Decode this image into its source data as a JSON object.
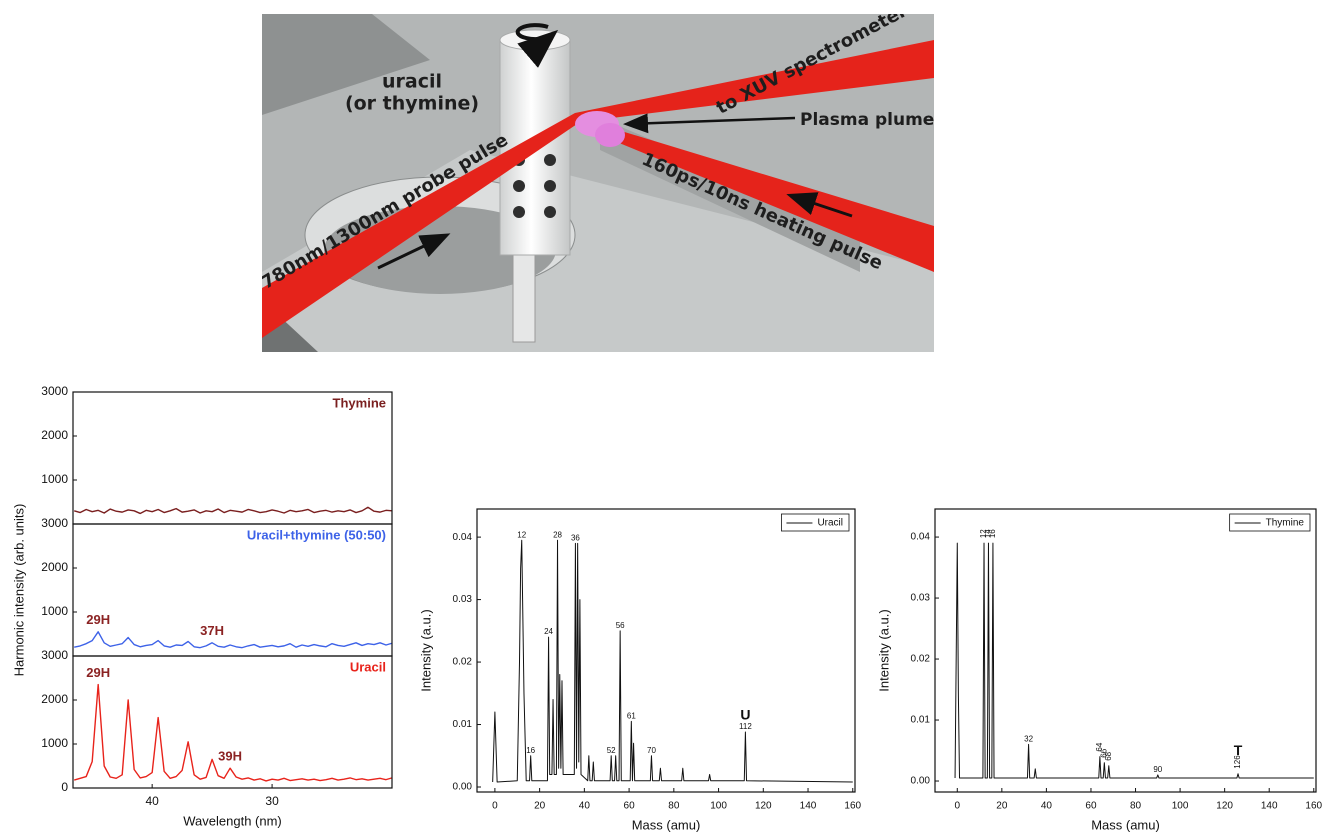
{
  "diagram": {
    "labels": [
      "uracil",
      "(or thymine)",
      "to XUV spectrometer",
      "Plasma plume",
      "780nm/1300nm probe pulse",
      "160ps/10ns heating pulse"
    ]
  },
  "chart_data": [
    {
      "type": "line",
      "x": [
        46.5,
        46,
        45.5,
        45,
        44.5,
        44,
        43.5,
        43,
        42.5,
        42,
        41.5,
        41,
        40.5,
        40,
        39.5,
        39,
        38.5,
        38,
        37.5,
        37,
        36.5,
        36,
        35.5,
        35,
        34.5,
        34,
        33.5,
        33,
        32.5,
        32,
        31.5,
        31,
        30.5,
        30,
        29.5,
        29,
        28.5,
        28,
        27.5,
        27,
        26.5,
        26,
        25.5,
        25,
        24.5,
        24,
        23.5,
        23,
        22.5,
        22,
        21.5,
        21,
        20.5,
        20
      ],
      "series": [
        {
          "name": "Thymine",
          "color": "#7a1f1f",
          "values": [
            300,
            260,
            330,
            280,
            310,
            250,
            340,
            290,
            270,
            320,
            300,
            240,
            310,
            280,
            330,
            260,
            300,
            350,
            270,
            290,
            320,
            250,
            300,
            280,
            340,
            260,
            310,
            290,
            270,
            330,
            300,
            260,
            280,
            320,
            290,
            250,
            310,
            280,
            300,
            330,
            260,
            290,
            310,
            270,
            300,
            280,
            320,
            260,
            300,
            380,
            290,
            270,
            310,
            300
          ]
        }
      ],
      "xlim": [
        46.6,
        20
      ],
      "ylim": [
        0,
        3000
      ],
      "yticks": [
        1000,
        2000,
        3000
      ]
    },
    {
      "type": "line",
      "x": [
        46.5,
        46,
        45.5,
        45,
        44.5,
        44,
        43.5,
        43,
        42.5,
        42,
        41.5,
        41,
        40.5,
        40,
        39.5,
        39,
        38.5,
        38,
        37.5,
        37,
        36.5,
        36,
        35.5,
        35,
        34.5,
        34,
        33.5,
        33,
        32.5,
        32,
        31.5,
        31,
        30.5,
        30,
        29.5,
        29,
        28.5,
        28,
        27.5,
        27,
        26.5,
        26,
        25.5,
        25,
        24.5,
        24,
        23.5,
        23,
        22.5,
        22,
        21.5,
        21,
        20.5,
        20
      ],
      "series": [
        {
          "name": "Uracil+thymine (50:50)",
          "color": "#3d62e8",
          "values": [
            200,
            230,
            280,
            350,
            550,
            300,
            220,
            250,
            280,
            420,
            260,
            210,
            240,
            260,
            350,
            230,
            200,
            250,
            240,
            330,
            210,
            190,
            230,
            300,
            220,
            200,
            250,
            210,
            190,
            230,
            260,
            200,
            220,
            240,
            210,
            230,
            280,
            200,
            250,
            220,
            260,
            230,
            210,
            280,
            240,
            220,
            260,
            300,
            240,
            280,
            260,
            300,
            250,
            290
          ]
        }
      ],
      "annotations": [
        {
          "x": 44.5,
          "text": "29H"
        },
        {
          "x": 35,
          "text": "37H"
        }
      ],
      "xlim": [
        46.6,
        20
      ],
      "ylim": [
        0,
        3000
      ],
      "yticks": [
        1000,
        2000,
        3000
      ],
      "ylabel": "Harmonic intensity (arb. units)"
    },
    {
      "type": "line",
      "x": [
        46.5,
        46,
        45.5,
        45,
        44.5,
        44,
        43.5,
        43,
        42.5,
        42,
        41.5,
        41,
        40.5,
        40,
        39.5,
        39,
        38.5,
        38,
        37.5,
        37,
        36.5,
        36,
        35.5,
        35,
        34.5,
        34,
        33.5,
        33,
        32.5,
        32,
        31.5,
        31,
        30.5,
        30,
        29.5,
        29,
        28.5,
        28,
        27.5,
        27,
        26.5,
        26,
        25.5,
        25,
        24.5,
        24,
        23.5,
        23,
        22.5,
        22,
        21.5,
        21,
        20.5,
        20
      ],
      "series": [
        {
          "name": "Uracil",
          "color": "#e8231b",
          "values": [
            180,
            220,
            260,
            600,
            2350,
            500,
            250,
            220,
            300,
            2000,
            420,
            230,
            260,
            350,
            1600,
            380,
            220,
            260,
            400,
            1050,
            300,
            200,
            240,
            650,
            280,
            220,
            450,
            250,
            200,
            230,
            180,
            210,
            160,
            200,
            180,
            220,
            170,
            190,
            210,
            180,
            200,
            170,
            190,
            220,
            180,
            200,
            230,
            190,
            210,
            180,
            200,
            220,
            190,
            230
          ]
        }
      ],
      "annotations": [
        {
          "x": 44.5,
          "text": "29H"
        },
        {
          "x": 33.5,
          "text": "39H"
        }
      ],
      "xlim": [
        46.6,
        20
      ],
      "xticks": [
        40,
        30
      ],
      "ylim": [
        0,
        3000
      ],
      "yticks": [
        0,
        1000,
        2000,
        3000
      ],
      "xlabel": "Wavelength (nm)"
    },
    {
      "type": "line",
      "x": [
        -1,
        0,
        1,
        10,
        11,
        11.5,
        12,
        13,
        14,
        15.5,
        16,
        16.5,
        23.5,
        24,
        24.5,
        25.5,
        26,
        26.5,
        27.5,
        28,
        28.5,
        29,
        29.5,
        30,
        30.5,
        35.5,
        36,
        36.5,
        37,
        37.5,
        38,
        38.5,
        41.5,
        42,
        42.5,
        43.5,
        44,
        44.5,
        51.5,
        52,
        52.5,
        53.5,
        54,
        54.5,
        55.5,
        56,
        56.5,
        60.5,
        61,
        61.5,
        62,
        62.5,
        69.5,
        70,
        70.5,
        73.5,
        74,
        74.5,
        83.5,
        84,
        84.5,
        95.5,
        96,
        96.5,
        111.5,
        112,
        112.5,
        160
      ],
      "series": [
        {
          "name": "Uracil",
          "color": "#111111",
          "values": [
            0.0008,
            0.012,
            0.0008,
            0.001,
            0.02,
            0.035,
            0.0395,
            0.015,
            0.001,
            0.001,
            0.005,
            0.001,
            0.001,
            0.024,
            0.002,
            0.002,
            0.014,
            0.002,
            0.002,
            0.0395,
            0.003,
            0.018,
            0.003,
            0.017,
            0.002,
            0.002,
            0.039,
            0.003,
            0.039,
            0.004,
            0.03,
            0.002,
            0.001,
            0.005,
            0.001,
            0.001,
            0.004,
            0.001,
            0.001,
            0.005,
            0.001,
            0.001,
            0.005,
            0.001,
            0.001,
            0.025,
            0.001,
            0.001,
            0.0105,
            0.001,
            0.007,
            0.001,
            0.001,
            0.005,
            0.001,
            0.001,
            0.003,
            0.001,
            0.001,
            0.003,
            0.001,
            0.001,
            0.002,
            0.001,
            0.001,
            0.0088,
            0.001,
            0.0008
          ]
        }
      ],
      "annotations": [
        {
          "x": 12,
          "text": "12"
        },
        {
          "x": 28,
          "text": "28"
        },
        {
          "x": 36,
          "text": "36"
        },
        {
          "x": 24,
          "text": "24"
        },
        {
          "x": 56,
          "text": "56"
        },
        {
          "x": 61,
          "text": "61"
        },
        {
          "x": 16,
          "text": "16"
        },
        {
          "x": 52,
          "text": "52"
        },
        {
          "x": 70,
          "text": "70"
        },
        {
          "x": 112,
          "text": "112"
        },
        {
          "x": 112,
          "text": "U"
        }
      ],
      "xlim": [
        -8,
        161
      ],
      "xticks": [
        0,
        20,
        40,
        60,
        80,
        100,
        120,
        140,
        160
      ],
      "ylim": [
        -0.0008,
        0.0445
      ],
      "yticks": [
        {
          "value": 0,
          "label": "0.00"
        },
        0.01,
        0.02,
        0.03,
        0.04
      ],
      "xlabel": "Mass (amu)",
      "ylabel": "Intensity (a.u.)",
      "legend": "upper right",
      "legend_frame": true
    },
    {
      "type": "line",
      "x": [
        -1,
        0,
        0.5,
        1,
        11.5,
        12,
        12.5,
        13.5,
        14,
        14.5,
        15.5,
        16,
        16.5,
        31.5,
        32,
        32.5,
        34.5,
        35,
        35.5,
        63.5,
        64,
        64.5,
        65.5,
        66,
        66.5,
        67.5,
        68,
        68.5,
        89.5,
        90,
        90.5,
        125.5,
        126,
        126.5,
        160
      ],
      "series": [
        {
          "name": "Thymine",
          "color": "#111111",
          "values": [
            0.0005,
            0.039,
            0.014,
            0.0005,
            0.0005,
            0.039,
            0.0005,
            0.0005,
            0.039,
            0.0005,
            0.0005,
            0.039,
            0.0005,
            0.0005,
            0.006,
            0.0005,
            0.0005,
            0.002,
            0.0005,
            0.0005,
            0.004,
            0.0005,
            0.0005,
            0.003,
            0.0005,
            0.0005,
            0.0025,
            0.0005,
            0.0005,
            0.001,
            0.0005,
            0.0005,
            0.0012,
            0.0005,
            0.0005
          ]
        }
      ],
      "annotations": [
        {
          "x": 12,
          "text": "12",
          "vertical": true
        },
        {
          "x": 14,
          "text": "14",
          "vertical": true
        },
        {
          "x": 16,
          "text": "16",
          "vertical": true
        },
        {
          "x": 32,
          "text": "32"
        },
        {
          "x": 64,
          "text": "64",
          "vertical": true
        },
        {
          "x": 66,
          "text": "66",
          "vertical": true
        },
        {
          "x": 68,
          "text": "68",
          "vertical": true
        },
        {
          "x": 90,
          "text": "90"
        },
        {
          "x": 126,
          "text": "126",
          "vertical": true
        },
        {
          "x": 126,
          "text": "T"
        }
      ],
      "xlim": [
        -10,
        161
      ],
      "xticks": [
        0,
        20,
        40,
        60,
        80,
        100,
        120,
        140,
        160
      ],
      "ylim": [
        -0.0018,
        0.0446
      ],
      "yticks": [
        {
          "value": 0,
          "label": "0.00"
        },
        0.01,
        0.02,
        0.03,
        0.04
      ],
      "xlabel": "Mass (amu)",
      "ylabel": "Intensity (a.u.)",
      "legend": "upper right",
      "legend_frame": true
    }
  ]
}
